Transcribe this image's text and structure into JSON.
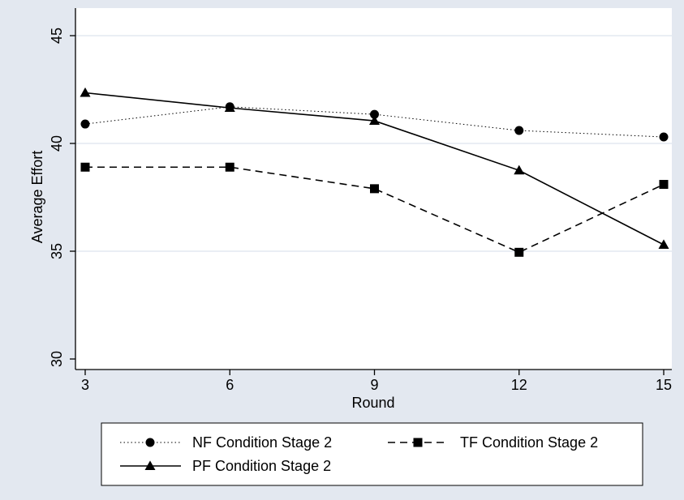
{
  "chart_data": {
    "type": "line",
    "xlabel": "Round",
    "ylabel": "Average Effort",
    "x": [
      3,
      6,
      9,
      12,
      15
    ],
    "xlim": [
      3,
      15
    ],
    "ylim": [
      30,
      45
    ],
    "yticks": [
      30,
      35,
      40,
      45
    ],
    "xticks": [
      3,
      6,
      9,
      12,
      15
    ],
    "grid": "horizontal",
    "legend_position": "bottom",
    "series": [
      {
        "name": "NF Condition Stage 2",
        "values": [
          40.9,
          41.7,
          41.35,
          40.6,
          40.3
        ],
        "line_style": "dotted",
        "marker": "circle",
        "color": "#000000"
      },
      {
        "name": "TF Condition Stage 2",
        "values": [
          38.9,
          38.9,
          37.9,
          34.95,
          38.1
        ],
        "line_style": "dashed",
        "marker": "square",
        "color": "#000000"
      },
      {
        "name": "PF Condition Stage 2",
        "values": [
          42.35,
          41.65,
          41.05,
          38.75,
          35.3
        ],
        "line_style": "solid",
        "marker": "triangle",
        "color": "#000000"
      }
    ],
    "colors": {
      "outer_background": "#e3e8f0",
      "plot_background": "#ffffff",
      "gridline": "#e3e8f0"
    }
  }
}
